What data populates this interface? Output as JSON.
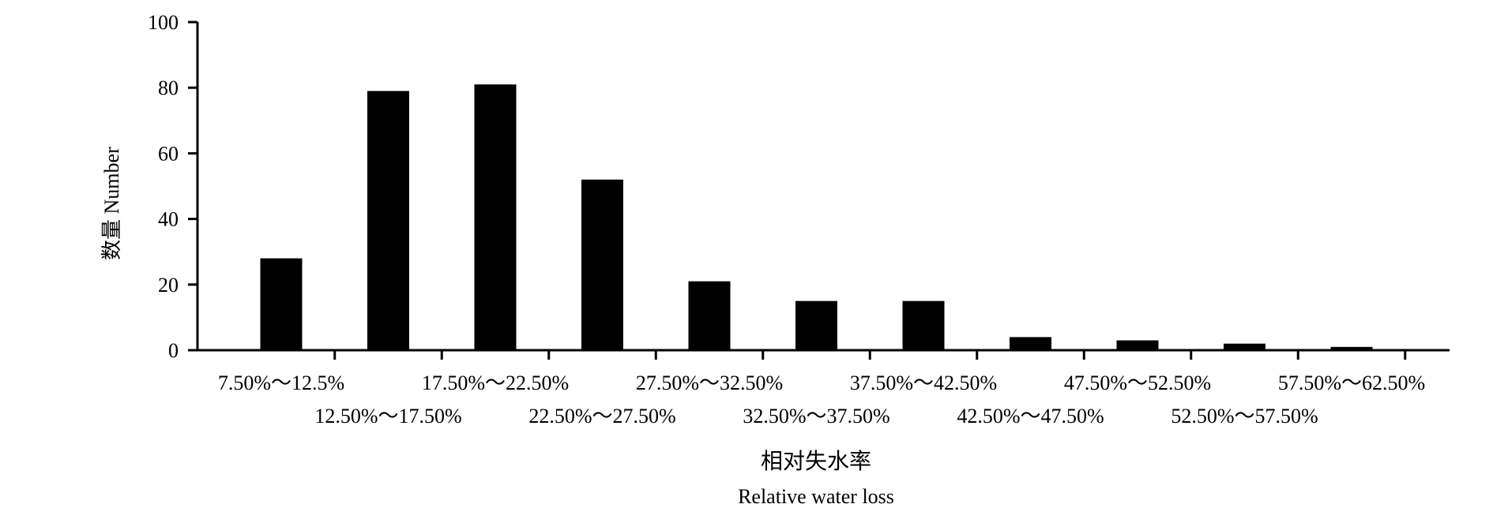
{
  "chart_data": {
    "type": "bar",
    "categories": [
      "7.50%～12.5%",
      "12.50%～17.50%",
      "17.50%～22.50%",
      "22.50%～27.50%",
      "27.50%～32.50%",
      "32.50%～37.50%",
      "37.50%～42.50%",
      "42.50%～47.50%",
      "47.50%～52.50%",
      "52.50%～57.50%",
      "57.50%～62.50%"
    ],
    "values": [
      28,
      79,
      81,
      52,
      21,
      15,
      15,
      4,
      3,
      2,
      1
    ],
    "ylabel": "数量 Number",
    "xlabel_cn": "相对失水率",
    "xlabel_en": "Relative water loss",
    "ylim": [
      0,
      100
    ],
    "yticks": [
      0,
      20,
      40,
      60,
      80,
      100
    ],
    "grid": false,
    "bar_color": "#000000"
  }
}
